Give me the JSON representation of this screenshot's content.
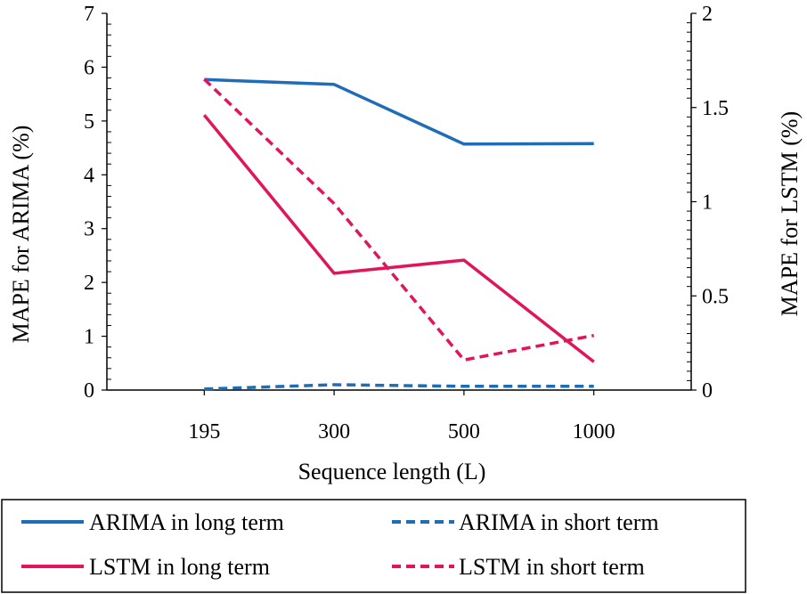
{
  "chart_data": {
    "type": "line",
    "categories": [
      "195",
      "300",
      "500",
      "1000"
    ],
    "xlabel": "Sequence length (L)",
    "ylabel_left": "MAPE for ARIMA (%)",
    "ylabel_right": "MAPE for LSTM (%)",
    "ylim_left": [
      0,
      7
    ],
    "ylim_right": [
      0,
      2
    ],
    "yticks_left": [
      "0",
      "1",
      "2",
      "3",
      "4",
      "5",
      "6",
      "7"
    ],
    "yticks_right": [
      "0",
      "0.5",
      "1",
      "1.5",
      "2"
    ],
    "grid": false,
    "legend_position": "bottom",
    "series": [
      {
        "name": "ARIMA in long term",
        "axis": "left",
        "values": [
          5.77,
          5.68,
          4.57,
          4.58
        ],
        "color": "#1f6cb7",
        "dash": "solid"
      },
      {
        "name": "ARIMA in short term",
        "axis": "left",
        "values": [
          0.02,
          0.1,
          0.07,
          0.07
        ],
        "color": "#1f6cb7",
        "dash": "dashed"
      },
      {
        "name": "LSTM in long term",
        "axis": "right",
        "values": [
          1.46,
          0.62,
          0.69,
          0.15
        ],
        "color": "#e0155b",
        "dash": "solid"
      },
      {
        "name": "LSTM in short term",
        "axis": "right",
        "values": [
          1.65,
          0.99,
          0.16,
          0.29
        ],
        "color": "#e0155b",
        "dash": "dashed"
      }
    ]
  }
}
